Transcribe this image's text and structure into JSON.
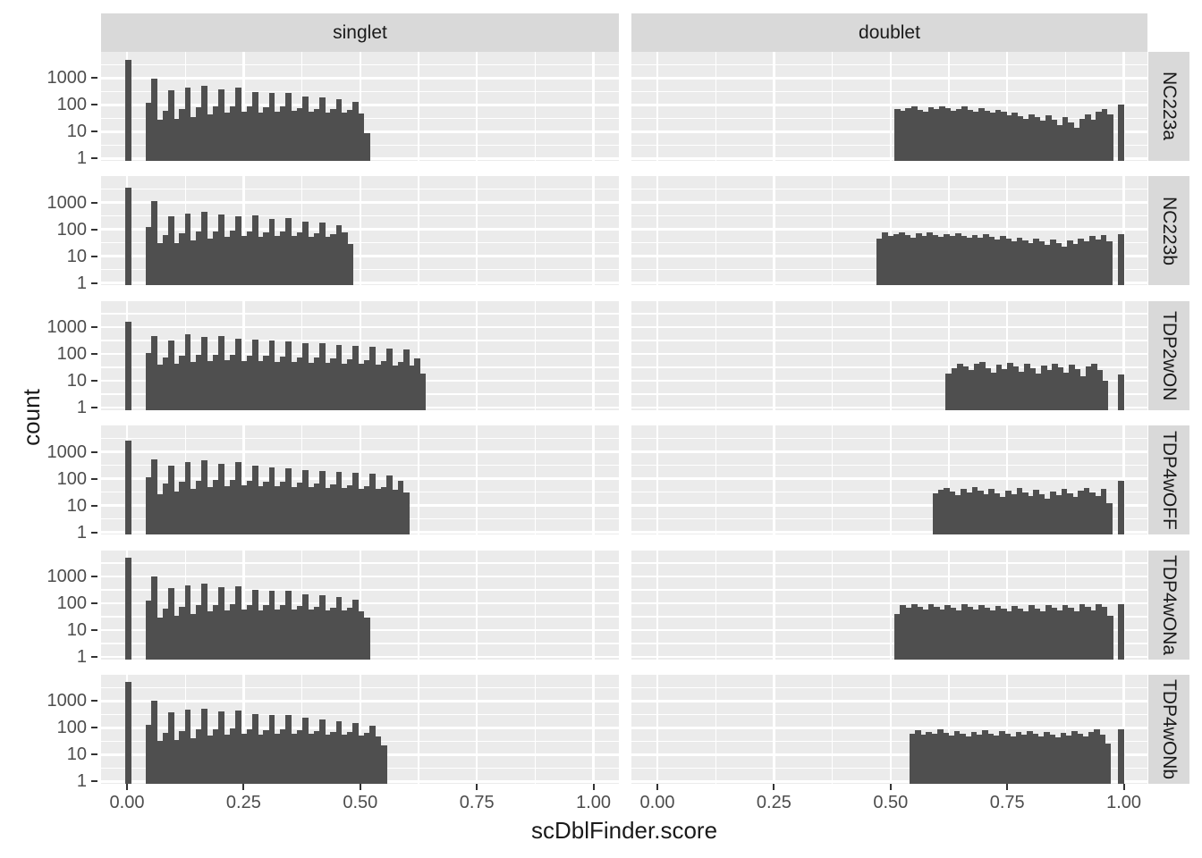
{
  "figure": {
    "x_title": "scDblFinder.score",
    "y_title": "count",
    "column_facets": [
      "singlet",
      "doublet"
    ],
    "row_facets": [
      "NC223a",
      "NC223b",
      "TDP2wON",
      "TDP4wOFF",
      "TDP4wONa",
      "TDP4wONb"
    ],
    "x_tick_labels": [
      "0.00",
      "0.25",
      "0.50",
      "0.75",
      "1.00"
    ],
    "y_tick_labels": [
      "1000",
      "100",
      "10",
      "1"
    ]
  },
  "colors": {
    "page_background": "#ffffff",
    "panel_background": "#ebebeb",
    "gridline": "#ffffff",
    "strip_background": "#d9d9d9",
    "bar_fill": "#4f4f4f",
    "axis_text": "#4d4d4d",
    "title_text": "#1a1a1a",
    "tick_mark": "#333333"
  },
  "chart_data": {
    "type": "bar",
    "subtype": "faceted-histogram",
    "title": "",
    "xlabel": "scDblFinder.score",
    "ylabel": "count",
    "y_scale": "log10",
    "x_ticks": [
      0,
      0.25,
      0.5,
      0.75,
      1.0
    ],
    "y_ticks": [
      1,
      10,
      100,
      1000
    ],
    "xlim": [
      -0.055,
      1.055
    ],
    "ylim_log_decades": [
      0,
      4
    ],
    "grid": "major-and-minor-white-on-gray",
    "legend": "none",
    "binwidth": 0.012,
    "facets": [
      {
        "row": "NC223a",
        "col": "singlet",
        "spike_x": 0.0,
        "spike_count": 4700,
        "bars_start": 0.04,
        "counts": [
          115,
          950,
          28,
          60,
          340,
          30,
          70,
          430,
          36,
          80,
          510,
          44,
          85,
          390,
          50,
          90,
          430,
          55,
          85,
          310,
          52,
          80,
          270,
          55,
          85,
          285,
          58,
          78,
          205,
          55,
          72,
          190,
          52,
          68,
          160,
          50,
          64,
          130,
          48,
          9
        ]
      },
      {
        "row": "NC223a",
        "col": "doublet",
        "spike_x": 0.991,
        "spike_count": 100,
        "bars_start": 0.508,
        "counts": [
          70,
          60,
          75,
          85,
          65,
          55,
          80,
          70,
          90,
          75,
          60,
          70,
          85,
          65,
          55,
          75,
          60,
          50,
          65,
          55,
          42,
          50,
          38,
          30,
          45,
          35,
          25,
          40,
          28,
          18,
          35,
          22,
          14,
          30,
          45,
          28,
          55,
          70,
          45
        ]
      },
      {
        "row": "NC223b",
        "col": "singlet",
        "spike_x": 0.0,
        "spike_count": 3600,
        "bars_start": 0.04,
        "counts": [
          120,
          1100,
          30,
          62,
          300,
          32,
          72,
          380,
          38,
          82,
          460,
          46,
          86,
          350,
          52,
          88,
          300,
          56,
          84,
          330,
          54,
          80,
          250,
          56,
          82,
          270,
          58,
          76,
          195,
          54,
          70,
          175,
          52,
          66,
          145,
          75,
          28
        ]
      },
      {
        "row": "NC223b",
        "col": "doublet",
        "spike_x": 0.991,
        "spike_count": 65,
        "bars_start": 0.47,
        "counts": [
          45,
          75,
          55,
          65,
          80,
          60,
          50,
          70,
          58,
          75,
          62,
          52,
          68,
          56,
          72,
          58,
          48,
          62,
          50,
          65,
          52,
          42,
          55,
          44,
          35,
          50,
          40,
          30,
          45,
          36,
          26,
          42,
          32,
          22,
          38,
          28,
          45,
          35,
          55,
          42,
          60,
          35
        ]
      },
      {
        "row": "TDP2wON",
        "col": "singlet",
        "spike_x": 0.0,
        "spike_count": 1600,
        "bars_start": 0.04,
        "counts": [
          105,
          470,
          40,
          75,
          330,
          45,
          85,
          540,
          50,
          90,
          430,
          55,
          95,
          470,
          58,
          92,
          380,
          56,
          88,
          350,
          54,
          84,
          330,
          52,
          80,
          290,
          50,
          76,
          260,
          48,
          72,
          250,
          46,
          68,
          220,
          44,
          64,
          200,
          42,
          60,
          190,
          40,
          56,
          160,
          38,
          52,
          150,
          36,
          70,
          18
        ]
      },
      {
        "row": "TDP2wON",
        "col": "doublet",
        "spike_x": 0.991,
        "spike_count": 17,
        "bars_start": 0.618,
        "counts": [
          18,
          30,
          42,
          35,
          25,
          45,
          50,
          30,
          20,
          40,
          28,
          48,
          35,
          22,
          42,
          30,
          18,
          38,
          26,
          45,
          32,
          20,
          40,
          28,
          15,
          35,
          45,
          25,
          10
        ]
      },
      {
        "row": "TDP4wOFF",
        "col": "singlet",
        "spike_x": 0.0,
        "spike_count": 2600,
        "bars_start": 0.04,
        "counts": [
          110,
          520,
          26,
          64,
          310,
          34,
          74,
          420,
          40,
          82,
          480,
          48,
          86,
          360,
          52,
          88,
          400,
          56,
          82,
          300,
          52,
          78,
          270,
          54,
          74,
          240,
          50,
          70,
          210,
          48,
          66,
          195,
          46,
          62,
          180,
          44,
          58,
          165,
          42,
          54,
          150,
          40,
          50,
          135,
          38,
          80,
          30
        ]
      },
      {
        "row": "TDP4wOFF",
        "col": "doublet",
        "spike_x": 0.991,
        "spike_count": 85,
        "bars_start": 0.59,
        "counts": [
          28,
          38,
          45,
          32,
          24,
          42,
          30,
          48,
          35,
          26,
          40,
          28,
          20,
          36,
          26,
          44,
          30,
          22,
          38,
          26,
          18,
          34,
          24,
          42,
          28,
          20,
          36,
          45,
          30,
          22,
          40,
          12
        ]
      },
      {
        "row": "TDP4wONa",
        "col": "singlet",
        "spike_x": 0.0,
        "spike_count": 5100,
        "bars_start": 0.04,
        "counts": [
          125,
          1000,
          30,
          64,
          360,
          34,
          74,
          450,
          40,
          84,
          520,
          48,
          88,
          400,
          54,
          92,
          440,
          58,
          86,
          320,
          54,
          82,
          280,
          58,
          84,
          300,
          60,
          78,
          220,
          56,
          74,
          200,
          54,
          70,
          175,
          52,
          66,
          140,
          50,
          28
        ]
      },
      {
        "row": "TDP4wONa",
        "col": "doublet",
        "spike_x": 0.991,
        "spike_count": 95,
        "bars_start": 0.508,
        "counts": [
          40,
          85,
          70,
          95,
          75,
          60,
          90,
          72,
          58,
          88,
          70,
          55,
          92,
          74,
          60,
          85,
          68,
          52,
          80,
          64,
          50,
          78,
          62,
          48,
          82,
          65,
          50,
          88,
          70,
          54,
          85,
          66,
          50,
          90,
          72,
          55,
          95,
          75,
          35
        ]
      },
      {
        "row": "TDP4wONb",
        "col": "singlet",
        "spike_x": 0.0,
        "spike_count": 5200,
        "bars_start": 0.04,
        "counts": [
          130,
          1050,
          32,
          66,
          370,
          36,
          76,
          460,
          42,
          86,
          530,
          50,
          90,
          410,
          56,
          94,
          450,
          60,
          88,
          330,
          56,
          84,
          290,
          60,
          86,
          310,
          62,
          80,
          230,
          58,
          76,
          205,
          56,
          72,
          180,
          54,
          68,
          150,
          52,
          64,
          120,
          48,
          22
        ]
      },
      {
        "row": "TDP4wONb",
        "col": "doublet",
        "spike_x": 0.991,
        "spike_count": 90,
        "bars_start": 0.54,
        "counts": [
          60,
          80,
          55,
          70,
          58,
          85,
          65,
          50,
          75,
          60,
          48,
          70,
          56,
          80,
          62,
          50,
          74,
          58,
          46,
          68,
          54,
          78,
          60,
          48,
          72,
          56,
          44,
          66,
          52,
          76,
          58,
          46,
          70,
          85,
          55,
          25
        ]
      }
    ]
  }
}
